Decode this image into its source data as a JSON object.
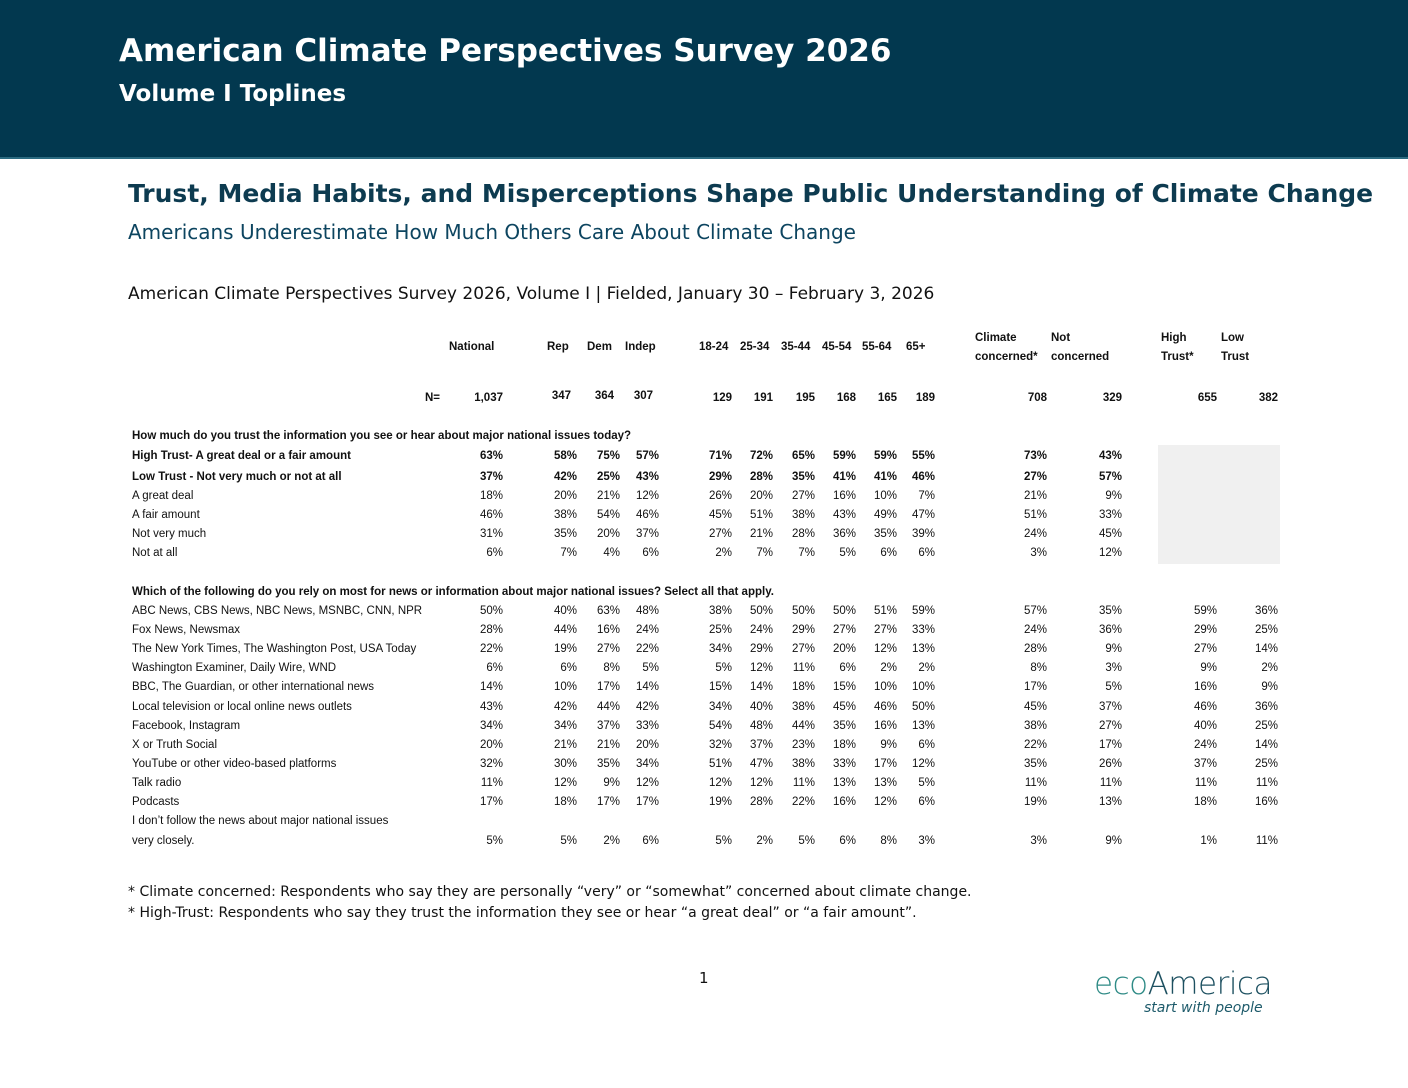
{
  "header": {
    "title": "American Climate Perspectives Survey 2026",
    "subtitle": "Volume I Toplines"
  },
  "section_title": "Trust, Media Habits, and Misperceptions Shape Public Understanding of Climate Change",
  "section_subtitle": "Americans Underestimate How Much Others Care About Climate Change",
  "fielded": "American Climate Perspectives Survey 2026, Volume I | Fielded, January 30 – February 3, 2026",
  "table": {
    "columns": [
      [
        "National"
      ],
      [
        "Rep"
      ],
      [
        "Dem"
      ],
      [
        "Indep"
      ],
      [
        "18-24"
      ],
      [
        "25-34"
      ],
      [
        "35-44"
      ],
      [
        "45-54"
      ],
      [
        "55-64"
      ],
      [
        "65+"
      ],
      [
        "Climate",
        "concerned*"
      ],
      [
        "Not",
        "concerned"
      ],
      [
        "High",
        "Trust*"
      ],
      [
        "Low",
        "Trust"
      ]
    ],
    "n_label": "N=",
    "n": [
      "1,037",
      "347",
      "364",
      "307",
      "129",
      "191",
      "195",
      "168",
      "165",
      "189",
      "708",
      "329",
      "655",
      "382"
    ],
    "questions": [
      {
        "text": "How much do you trust the information you see or hear about major national issues today?",
        "rows": [
          {
            "label": "High Trust- A great deal or a fair amount",
            "bold": true,
            "values": [
              "63%",
              "58%",
              "75%",
              "57%",
              "71%",
              "72%",
              "65%",
              "59%",
              "59%",
              "55%",
              "73%",
              "43%",
              "",
              ""
            ]
          },
          {
            "label": "Low Trust - Not very much or not at all",
            "bold": true,
            "values": [
              "37%",
              "42%",
              "25%",
              "43%",
              "29%",
              "28%",
              "35%",
              "41%",
              "41%",
              "46%",
              "27%",
              "57%",
              "",
              ""
            ]
          },
          {
            "label": "A great deal",
            "values": [
              "18%",
              "20%",
              "21%",
              "12%",
              "26%",
              "20%",
              "27%",
              "16%",
              "10%",
              "7%",
              "21%",
              "9%",
              "",
              ""
            ]
          },
          {
            "label": "A fair amount",
            "values": [
              "46%",
              "38%",
              "54%",
              "46%",
              "45%",
              "51%",
              "38%",
              "43%",
              "49%",
              "47%",
              "51%",
              "33%",
              "",
              ""
            ]
          },
          {
            "label": "Not very much",
            "values": [
              "31%",
              "35%",
              "20%",
              "37%",
              "27%",
              "21%",
              "28%",
              "36%",
              "35%",
              "39%",
              "24%",
              "45%",
              "",
              ""
            ]
          },
          {
            "label": "Not at all",
            "values": [
              "6%",
              "7%",
              "4%",
              "6%",
              "2%",
              "7%",
              "7%",
              "5%",
              "6%",
              "6%",
              "3%",
              "12%",
              "",
              ""
            ]
          }
        ]
      },
      {
        "text": "Which of the following do you rely on most for news or information about major national issues? Select all that apply.",
        "rows": [
          {
            "label": "ABC News, CBS News, NBC News, MSNBC, CNN, NPR",
            "values": [
              "50%",
              "40%",
              "63%",
              "48%",
              "38%",
              "50%",
              "50%",
              "50%",
              "51%",
              "59%",
              "57%",
              "35%",
              "59%",
              "36%"
            ]
          },
          {
            "label": "Fox News, Newsmax",
            "values": [
              "28%",
              "44%",
              "16%",
              "24%",
              "25%",
              "24%",
              "29%",
              "27%",
              "27%",
              "33%",
              "24%",
              "36%",
              "29%",
              "25%"
            ]
          },
          {
            "label": "The New York Times, The Washington Post, USA Today",
            "values": [
              "22%",
              "19%",
              "27%",
              "22%",
              "34%",
              "29%",
              "27%",
              "20%",
              "12%",
              "13%",
              "28%",
              "9%",
              "27%",
              "14%"
            ]
          },
          {
            "label": "Washington Examiner, Daily Wire, WND",
            "values": [
              "6%",
              "6%",
              "8%",
              "5%",
              "5%",
              "12%",
              "11%",
              "6%",
              "2%",
              "2%",
              "8%",
              "3%",
              "9%",
              "2%"
            ]
          },
          {
            "label": "BBC, The Guardian, or other international news",
            "values": [
              "14%",
              "10%",
              "17%",
              "14%",
              "15%",
              "14%",
              "18%",
              "15%",
              "10%",
              "10%",
              "17%",
              "5%",
              "16%",
              "9%"
            ]
          },
          {
            "label": "Local television or local online news outlets",
            "values": [
              "43%",
              "42%",
              "44%",
              "42%",
              "34%",
              "40%",
              "38%",
              "45%",
              "46%",
              "50%",
              "45%",
              "37%",
              "46%",
              "36%"
            ]
          },
          {
            "label": "Facebook, Instagram",
            "values": [
              "34%",
              "34%",
              "37%",
              "33%",
              "54%",
              "48%",
              "44%",
              "35%",
              "16%",
              "13%",
              "38%",
              "27%",
              "40%",
              "25%"
            ]
          },
          {
            "label": "X  or Truth Social",
            "values": [
              "20%",
              "21%",
              "21%",
              "20%",
              "32%",
              "37%",
              "23%",
              "18%",
              "9%",
              "6%",
              "22%",
              "17%",
              "24%",
              "14%"
            ]
          },
          {
            "label": "YouTube or other video-based platforms",
            "values": [
              "32%",
              "30%",
              "35%",
              "34%",
              "51%",
              "47%",
              "38%",
              "33%",
              "17%",
              "12%",
              "35%",
              "26%",
              "37%",
              "25%"
            ]
          },
          {
            "label": "Talk radio",
            "values": [
              "11%",
              "12%",
              "9%",
              "12%",
              "12%",
              "12%",
              "11%",
              "13%",
              "13%",
              "5%",
              "11%",
              "11%",
              "11%",
              "11%"
            ]
          },
          {
            "label": "Podcasts",
            "values": [
              "17%",
              "18%",
              "17%",
              "17%",
              "19%",
              "28%",
              "22%",
              "16%",
              "12%",
              "6%",
              "19%",
              "13%",
              "18%",
              "16%"
            ]
          },
          {
            "label": "I don’t follow the news about major national issues",
            "label2": "very closely.",
            "values": [
              "5%",
              "5%",
              "2%",
              "6%",
              "5%",
              "2%",
              "5%",
              "6%",
              "8%",
              "3%",
              "3%",
              "9%",
              "1%",
              "11%"
            ]
          }
        ]
      }
    ]
  },
  "footnotes": [
    "* Climate concerned: Respondents who say they are personally “very” or “somewhat” concerned about climate change.",
    "* High-Trust: Respondents who say they trust the information they see or hear “a great deal” or “a fair amount”."
  ],
  "page_number": "1",
  "logo": {
    "name": "ecoAmerica",
    "tagline": "start with people"
  }
}
